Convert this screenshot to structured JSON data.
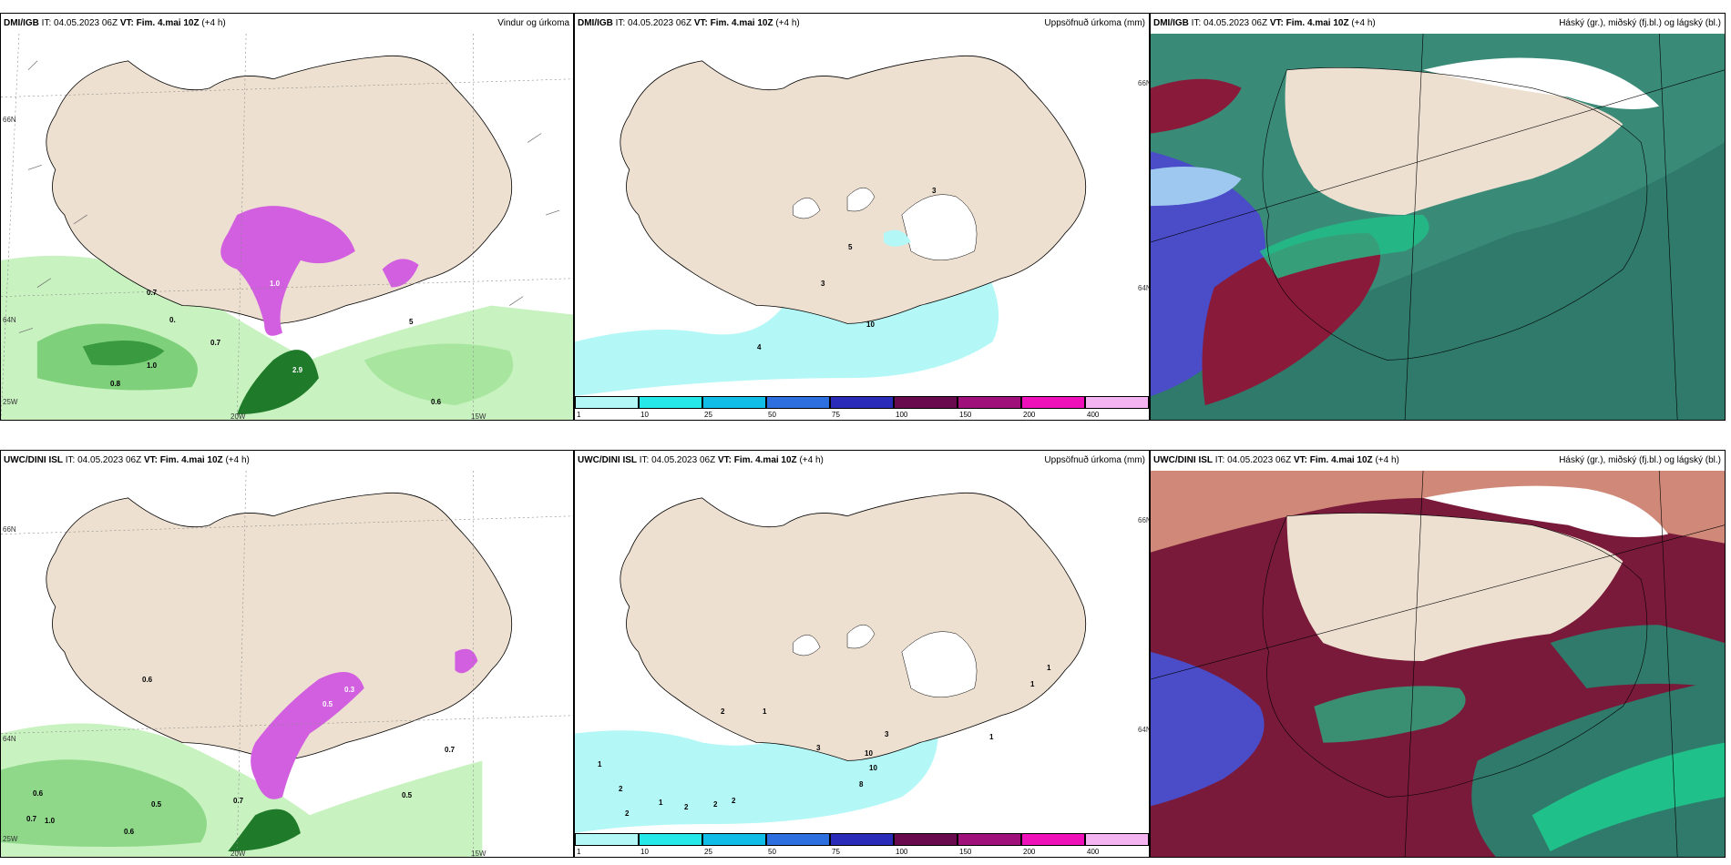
{
  "rows": [
    {
      "source": "DMI/IGB",
      "it_label": "IT:",
      "it_value": "04.05.2023 06Z",
      "vt_label": "VT:",
      "vt_value": "Fim. 4.mai 10Z",
      "lead": "(+4 h)"
    },
    {
      "source": "UWC/DINI ISL",
      "it_label": "IT:",
      "it_value": "04.05.2023 06Z",
      "vt_label": "VT:",
      "vt_value": "Fim. 4.mai 10Z",
      "lead": "(+4 h)"
    }
  ],
  "titles": {
    "wind": "Vindur og úrkoma",
    "precip": "Uppsöfnuð úrkoma (mm)",
    "cloud": "Háský (gr.), miðský (fj.bl.) og lágský (bl.)"
  },
  "axis_labels": {
    "lat66": "66N",
    "lat64": "64N",
    "lon25": "25W",
    "lon20": "20W",
    "lon15": "15W"
  },
  "colorbar": {
    "ticks": [
      "1",
      "10",
      "25",
      "50",
      "75",
      "100",
      "150",
      "200",
      "400"
    ],
    "colors": [
      "#b4f7f7",
      "#26e8e8",
      "#10bde6",
      "#2e6fe0",
      "#2a2bb8",
      "#6a0a4e",
      "#a0107a",
      "#ee10b8",
      "#f4b4f2"
    ]
  },
  "precip_labels": {
    "top_left": [
      "0.7",
      "0.",
      "0.7",
      "1.0",
      "0.8",
      "2.9",
      "1.0",
      "0.6",
      "5"
    ],
    "top_mid": [
      "3",
      "5",
      "3",
      "4",
      "10"
    ],
    "bottom_left": [
      "0.6",
      "0.6",
      "0.5",
      "0.7",
      "0.7",
      "1.0",
      "0.6",
      "0.5",
      "0.7",
      "0.3",
      "0.5"
    ],
    "bottom_mid": [
      "1",
      "2",
      "2",
      "1",
      "2",
      "2",
      "2",
      "2",
      "1",
      "3",
      "3",
      "10",
      "10",
      "8",
      "1",
      "1",
      "1"
    ]
  },
  "colors": {
    "land": "#ede0d1",
    "sea_light_green": "#c8f2c0",
    "green_mid": "#7fd07a",
    "green_dark": "#1f7a2a",
    "magenta": "#d15fe0",
    "cyan": "#b4f7f7",
    "cloud_teal": "#2f7a6a",
    "cloud_blue": "#4a4cc8",
    "cloud_red": "#8a1a3a",
    "cloud_green": "#20c08a"
  }
}
